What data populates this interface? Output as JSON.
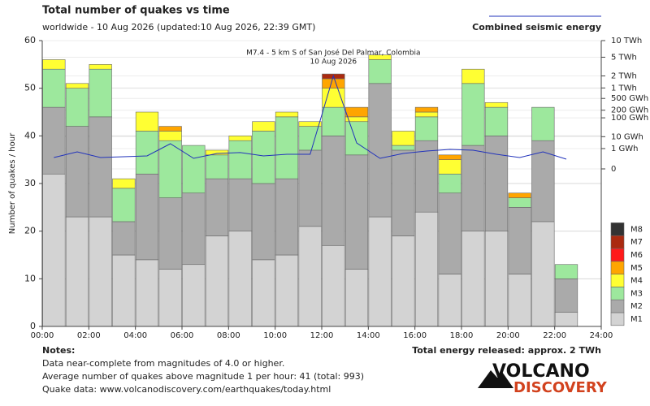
{
  "header": {
    "title": "Total number of quakes vs time",
    "subtitle": "worldwide - 10 Aug 2026 (updated:10 Aug 2026, 22:39 GMT)"
  },
  "chart_data": {
    "type": "bar",
    "stacked": true,
    "ylabel": "Number of quakes / hour",
    "x": [
      0.5,
      1.5,
      2.5,
      3.5,
      4.5,
      5.5,
      6.5,
      7.5,
      8.5,
      9.5,
      10.5,
      11.5,
      12.5,
      13.5,
      14.5,
      15.5,
      16.5,
      17.5,
      18.5,
      19.5,
      20.5,
      21.5,
      22.5,
      23.5
    ],
    "xlim": [
      0,
      24
    ],
    "xticks": [
      {
        "value": 0,
        "label": "00:00"
      },
      {
        "value": 2,
        "label": "02:00"
      },
      {
        "value": 4,
        "label": "04:00"
      },
      {
        "value": 6,
        "label": "06:00"
      },
      {
        "value": 8,
        "label": "08:00"
      },
      {
        "value": 10,
        "label": "10:00"
      },
      {
        "value": 12,
        "label": "12:00"
      },
      {
        "value": 14,
        "label": "14:00"
      },
      {
        "value": 16,
        "label": "16:00"
      },
      {
        "value": 18,
        "label": "18:00"
      },
      {
        "value": 20,
        "label": "20:00"
      },
      {
        "value": 22,
        "label": "22:00"
      },
      {
        "value": 24,
        "label": "24:00"
      }
    ],
    "ylim": [
      0,
      60
    ],
    "yticks": [
      0,
      10,
      20,
      30,
      40,
      50,
      60
    ],
    "grid": true,
    "y2lim": [
      0,
      10000
    ],
    "y2scale": "power",
    "y2power": 0.2,
    "y2ticks": [
      {
        "value": 10000,
        "label": "10 TWh"
      },
      {
        "value": 5000,
        "label": "5 TWh"
      },
      {
        "value": 2000,
        "label": "2 TWh"
      },
      {
        "value": 1000,
        "label": "1 TWh"
      },
      {
        "value": 500,
        "label": "500 GWh"
      },
      {
        "value": 200,
        "label": "200 GWh"
      },
      {
        "value": 100,
        "label": "100 GWh"
      },
      {
        "value": 10,
        "label": "10 GWh"
      },
      {
        "value": 1,
        "label": "1 GWh"
      },
      0
    ],
    "series": [
      {
        "name": "M1",
        "color": "#d3d3d3",
        "values": [
          32,
          23,
          23,
          15,
          14,
          12,
          13,
          19,
          20,
          14,
          15,
          21,
          17,
          12,
          23,
          19,
          24,
          11,
          20,
          20,
          11,
          22,
          3,
          0
        ]
      },
      {
        "name": "M2",
        "color": "#aaaaaa",
        "values": [
          14,
          19,
          21,
          7,
          18,
          15,
          15,
          12,
          11,
          16,
          16,
          16,
          23,
          24,
          28,
          18,
          15,
          17,
          18,
          20,
          14,
          17,
          7,
          0
        ]
      },
      {
        "name": "M3",
        "color": "#9de89d",
        "values": [
          8,
          8,
          10,
          7,
          9,
          12,
          10,
          5,
          8,
          11,
          13,
          5,
          6,
          7,
          5,
          1,
          5,
          4,
          13,
          6,
          2,
          7,
          3,
          0
        ]
      },
      {
        "name": "M4",
        "color": "#ffff33",
        "values": [
          2,
          1,
          1,
          2,
          4,
          2,
          0,
          1,
          1,
          2,
          1,
          1,
          4,
          1,
          1,
          3,
          1,
          3,
          3,
          1,
          0,
          0,
          0,
          0
        ]
      },
      {
        "name": "M5",
        "color": "#ffa500",
        "values": [
          0,
          0,
          0,
          0,
          0,
          1,
          0,
          0,
          0,
          0,
          0,
          0,
          2,
          2,
          0,
          0,
          1,
          1,
          0,
          0,
          1,
          0,
          0,
          0
        ]
      },
      {
        "name": "M6",
        "color": "#ff1a1a",
        "values": [
          0,
          0,
          0,
          0,
          0,
          0,
          0,
          0,
          0,
          0,
          0,
          0,
          0,
          0,
          0,
          0,
          0,
          0,
          0,
          0,
          0,
          0,
          0,
          0
        ]
      },
      {
        "name": "M7",
        "color": "#aa2a10",
        "values": [
          0,
          0,
          0,
          0,
          0,
          0,
          0,
          0,
          0,
          0,
          0,
          0,
          1,
          0,
          0,
          0,
          0,
          0,
          0,
          0,
          0,
          0,
          0,
          0
        ]
      },
      {
        "name": "M8",
        "color": "#333333",
        "values": [
          0,
          0,
          0,
          0,
          0,
          0,
          0,
          0,
          0,
          0,
          0,
          0,
          0,
          0,
          0,
          0,
          0,
          0,
          0,
          0,
          0,
          0,
          0,
          0
        ]
      },
      {
        "name": "Combined seismic energy",
        "type": "line",
        "axis": "y2",
        "color": "#2233bb",
        "values": [
          0.055,
          0.41,
          0.055,
          0.077,
          0.107,
          2.9,
          0.038,
          0.25,
          0.33,
          0.107,
          0.19,
          0.19,
          2000,
          3.4,
          0.038,
          0.25,
          0.52,
          0.81,
          0.65,
          0.19,
          0.055,
          0.41,
          0.025,
          null
        ]
      }
    ],
    "annotation": {
      "x": 12.5,
      "text": [
        "M7.4 - 5 km S of San José Del Palmar, Colombia",
        "10 Aug 2026"
      ]
    }
  },
  "notes": {
    "heading": "Notes:",
    "lines": [
      "Data near-complete from magnitudes of 4.0 or higher.",
      "Average number of quakes above magnitude 1 per hour: 41 (total: 993)",
      "Quake data: www.volcanodiscovery.com/earthquakes/today.html"
    ],
    "total_energy": "Total energy released: approx. 2 TWh"
  },
  "logo": {
    "line1": "VOLCANO",
    "line2": "DISCOVERY"
  }
}
